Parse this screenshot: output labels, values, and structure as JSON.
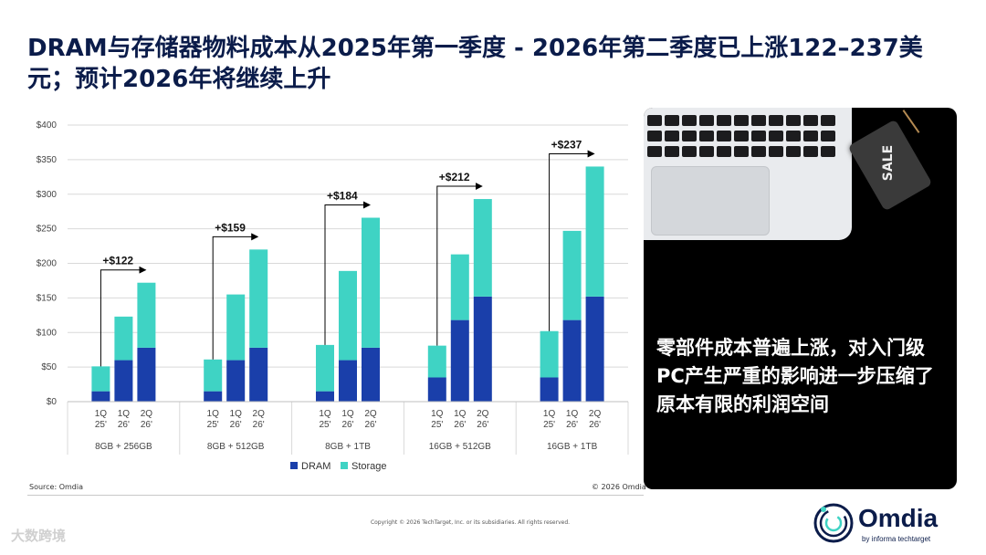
{
  "title": "DRAM与存储器物料成本从2025年第一季度 - 2026年第二季度已上涨122–237美元；预计2026年将继续上升",
  "source": "Source: Omdia",
  "chart_copyright": "© 2026 Omdia",
  "footer_copyright": "Copyright © 2026 TechTarget, Inc. or its subsidiaries. All rights reserved.",
  "panel": {
    "tag_text": "SALE",
    "message": "零部件成本普遍上涨，对入门级PC产生严重的影响进一步压缩了原本有限的利润空间"
  },
  "logo": {
    "name": "Omdia",
    "sub": "by informa techtarget"
  },
  "watermark": "大数跨境",
  "colors": {
    "dram": "#1a3faa",
    "storage": "#3fd3c4",
    "title": "#0b1c4a"
  },
  "chart_data": {
    "type": "bar",
    "stacked": true,
    "ylim": [
      0,
      400
    ],
    "yticks": [
      "$0",
      "$50",
      "$100",
      "$150",
      "$200",
      "$250",
      "$300",
      "$350",
      "$400"
    ],
    "ytick_values": [
      0,
      50,
      100,
      150,
      200,
      250,
      300,
      350,
      400
    ],
    "grid": true,
    "legend_position": "bottom",
    "series_names": [
      "DRAM",
      "Storage"
    ],
    "groups": [
      {
        "label": "8GB + 256GB",
        "delta": "+$122",
        "bars": [
          {
            "label": [
              "1Q",
              "25'"
            ],
            "dram": 15,
            "storage": 36
          },
          {
            "label": [
              "1Q",
              "26'"
            ],
            "dram": 60,
            "storage": 63
          },
          {
            "label": [
              "2Q",
              "26'"
            ],
            "dram": 78,
            "storage": 94
          }
        ]
      },
      {
        "label": "8GB + 512GB",
        "delta": "+$159",
        "bars": [
          {
            "label": [
              "1Q",
              "25'"
            ],
            "dram": 15,
            "storage": 46
          },
          {
            "label": [
              "1Q",
              "26'"
            ],
            "dram": 60,
            "storage": 95
          },
          {
            "label": [
              "2Q",
              "26'"
            ],
            "dram": 78,
            "storage": 142
          }
        ]
      },
      {
        "label": "8GB + 1TB",
        "delta": "+$184",
        "bars": [
          {
            "label": [
              "1Q",
              "25'"
            ],
            "dram": 15,
            "storage": 67
          },
          {
            "label": [
              "1Q",
              "26'"
            ],
            "dram": 60,
            "storage": 129
          },
          {
            "label": [
              "2Q",
              "26'"
            ],
            "dram": 78,
            "storage": 188
          }
        ]
      },
      {
        "label": "16GB + 512GB",
        "delta": "+$212",
        "bars": [
          {
            "label": [
              "1Q",
              "25'"
            ],
            "dram": 35,
            "storage": 46
          },
          {
            "label": [
              "1Q",
              "26'"
            ],
            "dram": 118,
            "storage": 95
          },
          {
            "label": [
              "2Q",
              "26'"
            ],
            "dram": 152,
            "storage": 141
          }
        ]
      },
      {
        "label": "16GB + 1TB",
        "delta": "+$237",
        "bars": [
          {
            "label": [
              "1Q",
              "25'"
            ],
            "dram": 35,
            "storage": 67
          },
          {
            "label": [
              "1Q",
              "26'"
            ],
            "dram": 118,
            "storage": 129
          },
          {
            "label": [
              "2Q",
              "26'"
            ],
            "dram": 152,
            "storage": 188
          }
        ]
      }
    ]
  }
}
